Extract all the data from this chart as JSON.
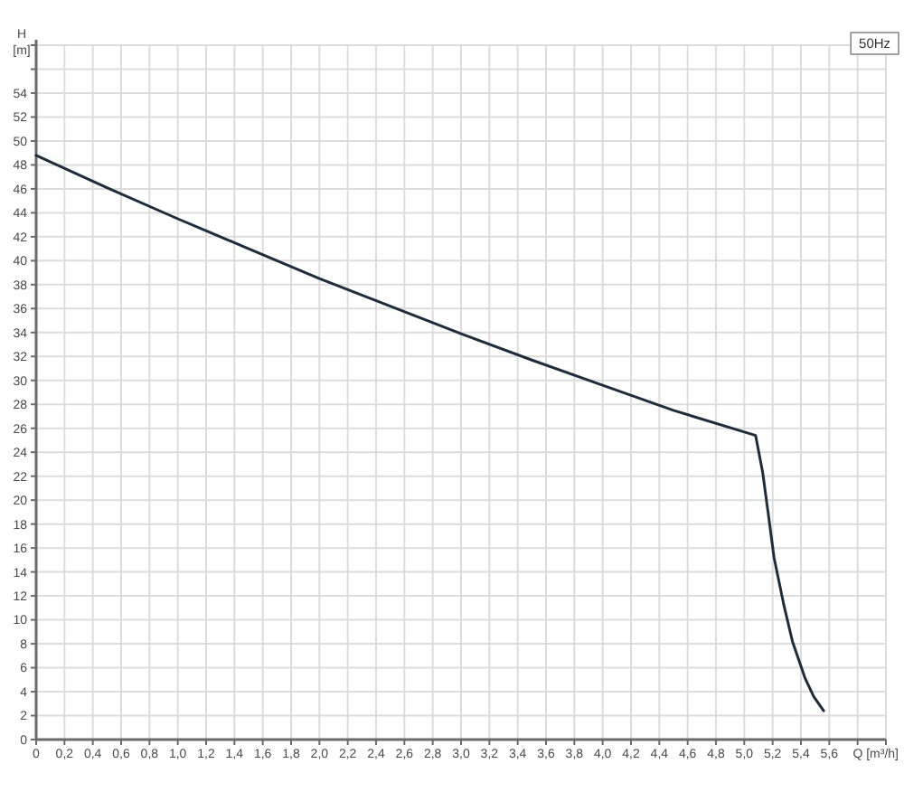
{
  "chart_data": {
    "type": "line",
    "xlabel": "Q [m³/h]",
    "ylabel": "H [m]",
    "annotations": [
      "50Hz"
    ],
    "x": [
      0,
      0.5,
      1,
      1.5,
      2,
      2.5,
      3,
      3.5,
      4,
      4.5,
      5.08,
      5.13,
      5.17,
      5.21,
      5.28,
      5.34,
      5.43,
      5.49,
      5.56
    ],
    "values": [
      48.8,
      46.1,
      43.5,
      41.0,
      38.5,
      36.2,
      33.9,
      31.7,
      29.6,
      27.5,
      25.4,
      22.3,
      18.8,
      15.2,
      11.2,
      8.2,
      5.1,
      3.6,
      2.4
    ],
    "color": "#1e2d3b",
    "xlim": [
      0,
      6
    ],
    "ylim": [
      0,
      58
    ],
    "xticks": [
      0,
      {
        "value": 0.2,
        "label": "0,2"
      },
      {
        "value": 0.4,
        "label": "0,4"
      },
      {
        "value": 0.6,
        "label": "0,6"
      },
      {
        "value": 0.8,
        "label": "0,8"
      },
      {
        "value": 1,
        "label": "1,0"
      },
      {
        "value": 1.2,
        "label": "1,2"
      },
      {
        "value": 1.4,
        "label": "1,4"
      },
      {
        "value": 1.6,
        "label": "1,6"
      },
      {
        "value": 1.8,
        "label": "1,8"
      },
      {
        "value": 2,
        "label": "2,0"
      },
      {
        "value": 2.2,
        "label": "2,2"
      },
      {
        "value": 2.4,
        "label": "2,4"
      },
      {
        "value": 2.6,
        "label": "2,6"
      },
      {
        "value": 2.8,
        "label": "2,8"
      },
      {
        "value": 3,
        "label": "3,0"
      },
      {
        "value": 3.2,
        "label": "3,2"
      },
      {
        "value": 3.4,
        "label": "3,4"
      },
      {
        "value": 3.6,
        "label": "3,6"
      },
      {
        "value": 3.8,
        "label": "3,8"
      },
      {
        "value": 4,
        "label": "4,0"
      },
      {
        "value": 4.2,
        "label": "4,2"
      },
      {
        "value": 4.4,
        "label": "4,4"
      },
      {
        "value": 4.6,
        "label": "4,6"
      },
      {
        "value": 4.8,
        "label": "4,8"
      },
      {
        "value": 5,
        "label": "5,0"
      },
      {
        "value": 5.2,
        "label": "5,2"
      },
      {
        "value": 5.4,
        "label": "5,4"
      },
      {
        "value": 5.6,
        "label": "5,6"
      },
      {
        "value": 5.8,
        "label": null
      },
      {
        "value": 6,
        "label": null
      }
    ],
    "yticks": [
      0,
      2,
      4,
      6,
      8,
      10,
      12,
      14,
      16,
      18,
      20,
      22,
      24,
      26,
      28,
      30,
      32,
      34,
      36,
      38,
      40,
      42,
      44,
      46,
      48,
      50,
      52,
      54,
      {
        "value": 56,
        "label": null
      },
      {
        "value": 58,
        "label": null
      }
    ],
    "grid": true
  }
}
